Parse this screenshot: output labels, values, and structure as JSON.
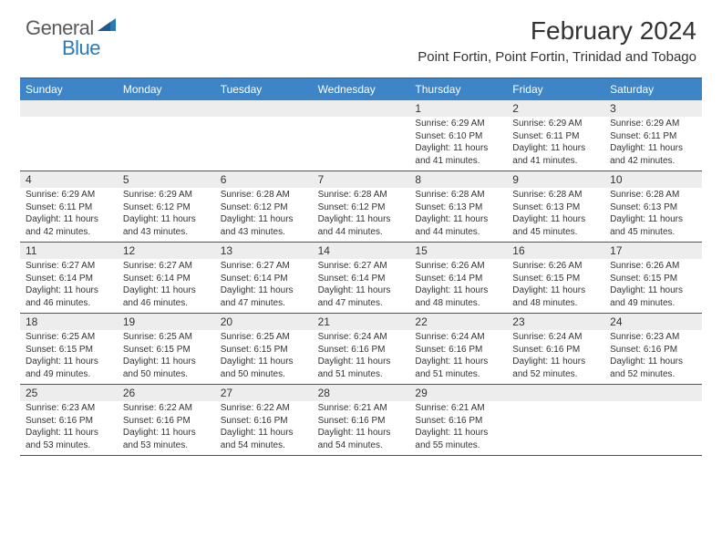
{
  "brand": {
    "text1": "General",
    "text2": "Blue"
  },
  "title": "February 2024",
  "location": "Point Fortin, Point Fortin, Trinidad and Tobago",
  "colors": {
    "header_bg": "#3d85c6",
    "header_border": "#315d84",
    "daynum_bg": "#ededed",
    "text": "#333333",
    "logo_gray": "#5a5a5a",
    "logo_blue": "#2a7ab8"
  },
  "day_names": [
    "Sunday",
    "Monday",
    "Tuesday",
    "Wednesday",
    "Thursday",
    "Friday",
    "Saturday"
  ],
  "weeks": [
    [
      {
        "n": "",
        "sunrise": "",
        "sunset": "",
        "daylight": ""
      },
      {
        "n": "",
        "sunrise": "",
        "sunset": "",
        "daylight": ""
      },
      {
        "n": "",
        "sunrise": "",
        "sunset": "",
        "daylight": ""
      },
      {
        "n": "",
        "sunrise": "",
        "sunset": "",
        "daylight": ""
      },
      {
        "n": "1",
        "sunrise": "Sunrise: 6:29 AM",
        "sunset": "Sunset: 6:10 PM",
        "daylight": "Daylight: 11 hours and 41 minutes."
      },
      {
        "n": "2",
        "sunrise": "Sunrise: 6:29 AM",
        "sunset": "Sunset: 6:11 PM",
        "daylight": "Daylight: 11 hours and 41 minutes."
      },
      {
        "n": "3",
        "sunrise": "Sunrise: 6:29 AM",
        "sunset": "Sunset: 6:11 PM",
        "daylight": "Daylight: 11 hours and 42 minutes."
      }
    ],
    [
      {
        "n": "4",
        "sunrise": "Sunrise: 6:29 AM",
        "sunset": "Sunset: 6:11 PM",
        "daylight": "Daylight: 11 hours and 42 minutes."
      },
      {
        "n": "5",
        "sunrise": "Sunrise: 6:29 AM",
        "sunset": "Sunset: 6:12 PM",
        "daylight": "Daylight: 11 hours and 43 minutes."
      },
      {
        "n": "6",
        "sunrise": "Sunrise: 6:28 AM",
        "sunset": "Sunset: 6:12 PM",
        "daylight": "Daylight: 11 hours and 43 minutes."
      },
      {
        "n": "7",
        "sunrise": "Sunrise: 6:28 AM",
        "sunset": "Sunset: 6:12 PM",
        "daylight": "Daylight: 11 hours and 44 minutes."
      },
      {
        "n": "8",
        "sunrise": "Sunrise: 6:28 AM",
        "sunset": "Sunset: 6:13 PM",
        "daylight": "Daylight: 11 hours and 44 minutes."
      },
      {
        "n": "9",
        "sunrise": "Sunrise: 6:28 AM",
        "sunset": "Sunset: 6:13 PM",
        "daylight": "Daylight: 11 hours and 45 minutes."
      },
      {
        "n": "10",
        "sunrise": "Sunrise: 6:28 AM",
        "sunset": "Sunset: 6:13 PM",
        "daylight": "Daylight: 11 hours and 45 minutes."
      }
    ],
    [
      {
        "n": "11",
        "sunrise": "Sunrise: 6:27 AM",
        "sunset": "Sunset: 6:14 PM",
        "daylight": "Daylight: 11 hours and 46 minutes."
      },
      {
        "n": "12",
        "sunrise": "Sunrise: 6:27 AM",
        "sunset": "Sunset: 6:14 PM",
        "daylight": "Daylight: 11 hours and 46 minutes."
      },
      {
        "n": "13",
        "sunrise": "Sunrise: 6:27 AM",
        "sunset": "Sunset: 6:14 PM",
        "daylight": "Daylight: 11 hours and 47 minutes."
      },
      {
        "n": "14",
        "sunrise": "Sunrise: 6:27 AM",
        "sunset": "Sunset: 6:14 PM",
        "daylight": "Daylight: 11 hours and 47 minutes."
      },
      {
        "n": "15",
        "sunrise": "Sunrise: 6:26 AM",
        "sunset": "Sunset: 6:14 PM",
        "daylight": "Daylight: 11 hours and 48 minutes."
      },
      {
        "n": "16",
        "sunrise": "Sunrise: 6:26 AM",
        "sunset": "Sunset: 6:15 PM",
        "daylight": "Daylight: 11 hours and 48 minutes."
      },
      {
        "n": "17",
        "sunrise": "Sunrise: 6:26 AM",
        "sunset": "Sunset: 6:15 PM",
        "daylight": "Daylight: 11 hours and 49 minutes."
      }
    ],
    [
      {
        "n": "18",
        "sunrise": "Sunrise: 6:25 AM",
        "sunset": "Sunset: 6:15 PM",
        "daylight": "Daylight: 11 hours and 49 minutes."
      },
      {
        "n": "19",
        "sunrise": "Sunrise: 6:25 AM",
        "sunset": "Sunset: 6:15 PM",
        "daylight": "Daylight: 11 hours and 50 minutes."
      },
      {
        "n": "20",
        "sunrise": "Sunrise: 6:25 AM",
        "sunset": "Sunset: 6:15 PM",
        "daylight": "Daylight: 11 hours and 50 minutes."
      },
      {
        "n": "21",
        "sunrise": "Sunrise: 6:24 AM",
        "sunset": "Sunset: 6:16 PM",
        "daylight": "Daylight: 11 hours and 51 minutes."
      },
      {
        "n": "22",
        "sunrise": "Sunrise: 6:24 AM",
        "sunset": "Sunset: 6:16 PM",
        "daylight": "Daylight: 11 hours and 51 minutes."
      },
      {
        "n": "23",
        "sunrise": "Sunrise: 6:24 AM",
        "sunset": "Sunset: 6:16 PM",
        "daylight": "Daylight: 11 hours and 52 minutes."
      },
      {
        "n": "24",
        "sunrise": "Sunrise: 6:23 AM",
        "sunset": "Sunset: 6:16 PM",
        "daylight": "Daylight: 11 hours and 52 minutes."
      }
    ],
    [
      {
        "n": "25",
        "sunrise": "Sunrise: 6:23 AM",
        "sunset": "Sunset: 6:16 PM",
        "daylight": "Daylight: 11 hours and 53 minutes."
      },
      {
        "n": "26",
        "sunrise": "Sunrise: 6:22 AM",
        "sunset": "Sunset: 6:16 PM",
        "daylight": "Daylight: 11 hours and 53 minutes."
      },
      {
        "n": "27",
        "sunrise": "Sunrise: 6:22 AM",
        "sunset": "Sunset: 6:16 PM",
        "daylight": "Daylight: 11 hours and 54 minutes."
      },
      {
        "n": "28",
        "sunrise": "Sunrise: 6:21 AM",
        "sunset": "Sunset: 6:16 PM",
        "daylight": "Daylight: 11 hours and 54 minutes."
      },
      {
        "n": "29",
        "sunrise": "Sunrise: 6:21 AM",
        "sunset": "Sunset: 6:16 PM",
        "daylight": "Daylight: 11 hours and 55 minutes."
      },
      {
        "n": "",
        "sunrise": "",
        "sunset": "",
        "daylight": ""
      },
      {
        "n": "",
        "sunrise": "",
        "sunset": "",
        "daylight": ""
      }
    ]
  ]
}
